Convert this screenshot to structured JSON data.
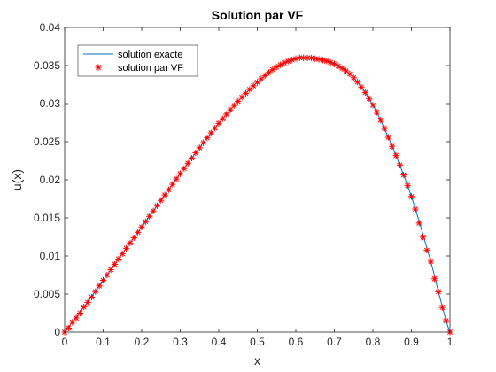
{
  "chart_data": {
    "type": "line",
    "title": "Solution par VF",
    "xlabel": "x",
    "ylabel": "u(x)",
    "xlim": [
      0,
      1
    ],
    "ylim": [
      0,
      0.04
    ],
    "x_ticks": [
      "0",
      "0.1",
      "0.2",
      "0.3",
      "0.4",
      "0.5",
      "0.6",
      "0.7",
      "0.8",
      "0.9",
      "1"
    ],
    "y_ticks": [
      "0",
      "0.005",
      "0.01",
      "0.015",
      "0.02",
      "0.025",
      "0.03",
      "0.035",
      "0.04"
    ],
    "grid": false,
    "legend_position": "top-left",
    "series": [
      {
        "name": "solution exacte",
        "style": "line",
        "color": "#0072BD",
        "x": [
          0,
          0.02,
          0.05,
          0.1,
          0.15,
          0.2,
          0.25,
          0.3,
          0.35,
          0.4,
          0.45,
          0.5,
          0.55,
          0.6,
          0.625,
          0.65,
          0.7,
          0.75,
          0.8,
          0.85,
          0.9,
          0.95,
          0.97,
          0.99,
          1
        ],
        "y": [
          0,
          0.0013,
          0.0033,
          0.0068,
          0.0103,
          0.0138,
          0.0173,
          0.0208,
          0.0242,
          0.0274,
          0.0303,
          0.0328,
          0.0348,
          0.0359,
          0.036,
          0.0359,
          0.0352,
          0.0334,
          0.0298,
          0.0244,
          0.0178,
          0.0093,
          0.0053,
          0.0015,
          0
        ]
      },
      {
        "name": "solution par VF",
        "style": "markers",
        "marker": "*",
        "color": "#FF0000",
        "x": [
          0,
          0.02,
          0.05,
          0.1,
          0.15,
          0.2,
          0.25,
          0.3,
          0.35,
          0.4,
          0.45,
          0.5,
          0.55,
          0.6,
          0.625,
          0.65,
          0.7,
          0.75,
          0.8,
          0.85,
          0.9,
          0.95,
          0.97,
          0.99,
          1
        ],
        "y": [
          0,
          0.0013,
          0.0033,
          0.0068,
          0.0103,
          0.0138,
          0.0173,
          0.0208,
          0.0242,
          0.0274,
          0.0303,
          0.0328,
          0.0348,
          0.0359,
          0.036,
          0.0359,
          0.0352,
          0.0334,
          0.0298,
          0.0244,
          0.0178,
          0.0093,
          0.0053,
          0.0015,
          0
        ]
      }
    ]
  }
}
